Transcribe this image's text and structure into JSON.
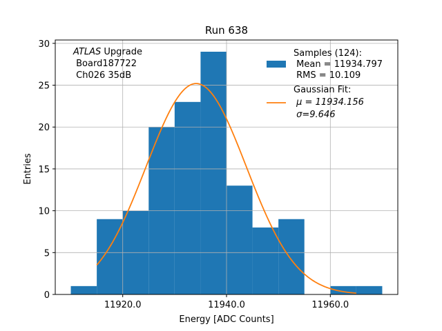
{
  "chart_data": {
    "type": "bar",
    "title": "Run 638",
    "xlabel": "Energy [ADC Counts]",
    "ylabel": "Entries",
    "xlim": [
      11907,
      11973
    ],
    "ylim": [
      0,
      30.4
    ],
    "grid": true,
    "legend_position": "top-right",
    "annotation": {
      "italic": "ATLAS",
      "rest": " Upgrade",
      "line2": " Board187722",
      "line3": " Ch026 35dB"
    },
    "x_ticks": [
      {
        "value": 11920,
        "label": "11920.0"
      },
      {
        "value": 11940,
        "label": "11940.0"
      },
      {
        "value": 11960,
        "label": "11960.0"
      }
    ],
    "y_ticks": [
      {
        "value": 0,
        "label": "0"
      },
      {
        "value": 5,
        "label": "5"
      },
      {
        "value": 10,
        "label": "10"
      },
      {
        "value": 15,
        "label": "15"
      },
      {
        "value": 20,
        "label": "20"
      },
      {
        "value": 25,
        "label": "25"
      },
      {
        "value": 30,
        "label": "30"
      }
    ],
    "histogram": {
      "bin_edges": [
        11910,
        11915,
        11920,
        11925,
        11930,
        11935,
        11940,
        11945,
        11950,
        11955,
        11960,
        11965,
        11970
      ],
      "counts": [
        1,
        9,
        10,
        20,
        23,
        29,
        13,
        8,
        9,
        0,
        1,
        1
      ],
      "color": "#1f77b4"
    },
    "fit": {
      "x_range": [
        11915,
        11965
      ],
      "amplitude": 25.2,
      "mu": 11934.156,
      "sigma": 9.646,
      "color": "#ff7f0e"
    },
    "legend": [
      {
        "type": "patch",
        "color": "#1f77b4",
        "lines": [
          "Samples (124):",
          " Mean = 11934.797",
          " RMS = 10.109"
        ]
      },
      {
        "type": "line",
        "color": "#ff7f0e",
        "lines": [
          "Gaussian Fit:",
          " μ = 11934.156",
          " σ=9.646"
        ]
      }
    ]
  }
}
